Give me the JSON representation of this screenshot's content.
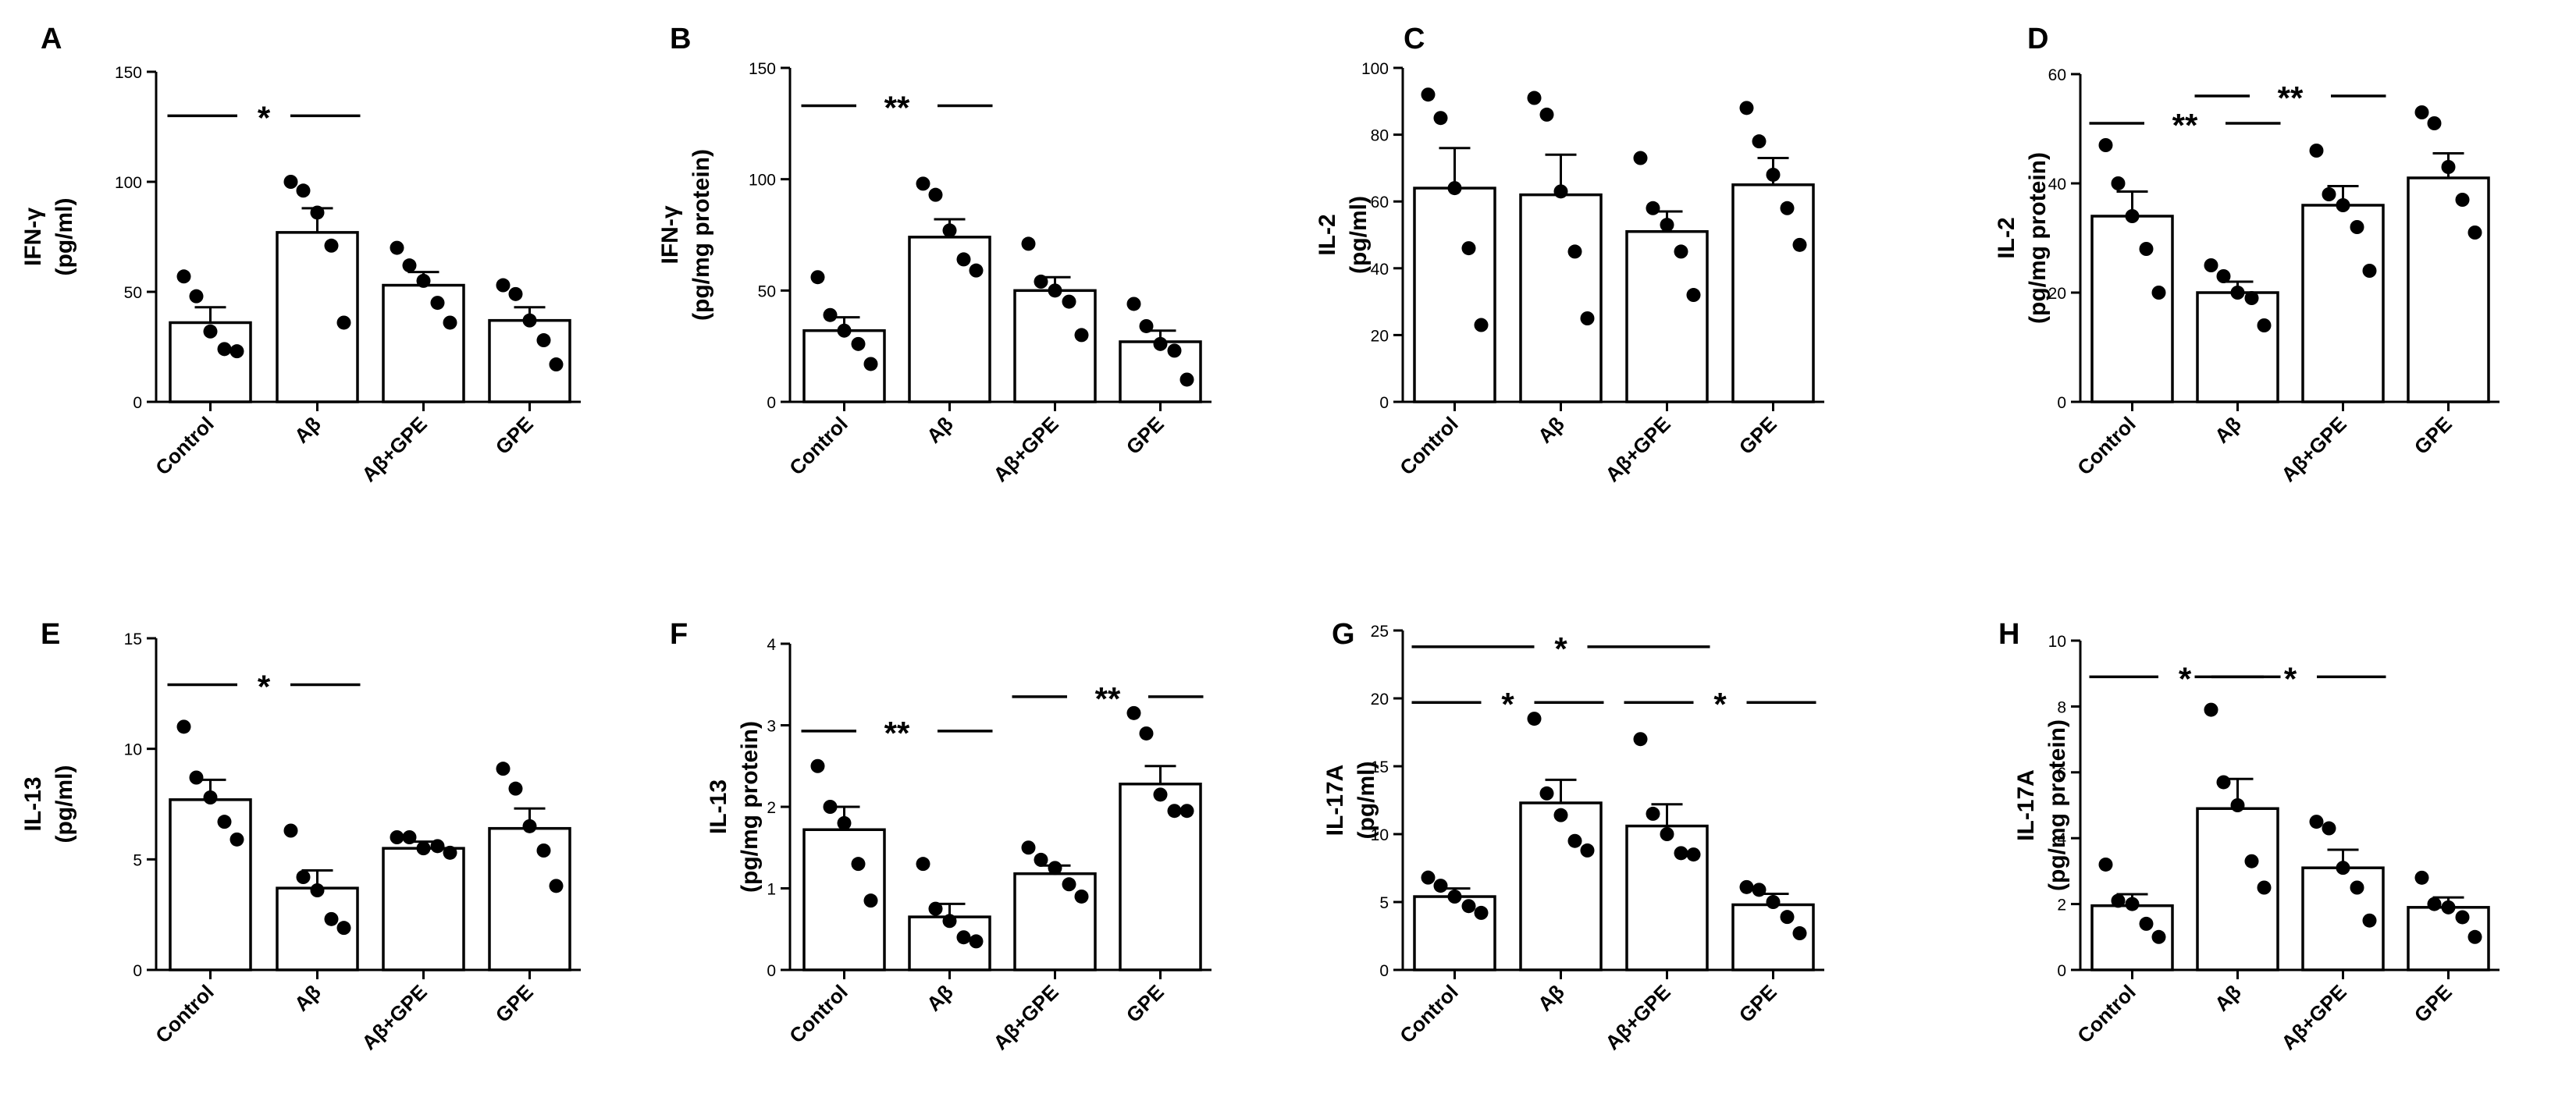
{
  "chart_data": [
    {
      "panel": "A",
      "type": "bar",
      "ylabel": [
        "IFN-γ",
        "(pg/ml)"
      ],
      "categories": [
        "Control",
        "Aβ",
        "Aβ+GPE",
        "GPE"
      ],
      "ylim": [
        0,
        150
      ],
      "yticks": [
        0,
        50,
        100,
        150
      ],
      "values": [
        36,
        77,
        53,
        37
      ],
      "sem": [
        7,
        11,
        6,
        6
      ],
      "points": [
        [
          57,
          48,
          32,
          24,
          23
        ],
        [
          100,
          96,
          86,
          71,
          36
        ],
        [
          70,
          62,
          55,
          45,
          36
        ],
        [
          53,
          49,
          37,
          28,
          17
        ]
      ],
      "significance": [
        {
          "from": 0,
          "to": 1,
          "label": "*",
          "level": 130
        }
      ]
    },
    {
      "panel": "B",
      "type": "bar",
      "ylabel": [
        "IFN-γ",
        "(pg/mg protein)"
      ],
      "categories": [
        "Control",
        "Aβ",
        "Aβ+GPE",
        "GPE"
      ],
      "ylim": [
        0,
        150
      ],
      "yticks": [
        0,
        50,
        100,
        150
      ],
      "values": [
        32,
        74,
        50,
        27
      ],
      "sem": [
        6,
        8,
        6,
        5
      ],
      "points": [
        [
          56,
          39,
          32,
          26,
          17
        ],
        [
          98,
          93,
          77,
          64,
          59
        ],
        [
          71,
          54,
          50,
          45,
          30
        ],
        [
          44,
          34,
          26,
          23,
          10
        ]
      ],
      "significance": [
        {
          "from": 0,
          "to": 1,
          "label": "**",
          "level": 133
        }
      ]
    },
    {
      "panel": "C",
      "type": "bar",
      "ylabel": [
        "IL-2",
        "(pg/ml)"
      ],
      "categories": [
        "Control",
        "Aβ",
        "Aβ+GPE",
        "GPE"
      ],
      "ylim": [
        0,
        100
      ],
      "yticks": [
        0,
        20,
        40,
        60,
        80,
        100
      ],
      "values": [
        64,
        62,
        51,
        65
      ],
      "sem": [
        12,
        12,
        6,
        8
      ],
      "points": [
        [
          92,
          85,
          64,
          46,
          23
        ],
        [
          91,
          86,
          63,
          45,
          25
        ],
        [
          73,
          58,
          53,
          45,
          32
        ],
        [
          88,
          78,
          68,
          58,
          47
        ]
      ],
      "significance": []
    },
    {
      "panel": "D",
      "type": "bar",
      "ylabel": [
        "IL-2",
        "(pg/mg protein)"
      ],
      "categories": [
        "Control",
        "Aβ",
        "Aβ+GPE",
        "GPE"
      ],
      "ylim": [
        0,
        60
      ],
      "yticks": [
        0,
        20,
        40,
        60
      ],
      "values": [
        34,
        20,
        36,
        41
      ],
      "sem": [
        4.5,
        2,
        3.5,
        4.5
      ],
      "points": [
        [
          47,
          40,
          34,
          28,
          20
        ],
        [
          25,
          23,
          20,
          19,
          14
        ],
        [
          46,
          38,
          36,
          32,
          24
        ],
        [
          53,
          51,
          43,
          37,
          31
        ]
      ],
      "significance": [
        {
          "from": 0,
          "to": 1,
          "label": "**",
          "level": 51
        },
        {
          "from": 1,
          "to": 2,
          "label": "**",
          "level": 56
        }
      ]
    },
    {
      "panel": "E",
      "type": "bar",
      "ylabel": [
        "IL-13",
        "(pg/ml)"
      ],
      "categories": [
        "Control",
        "Aβ",
        "Aβ+GPE",
        "GPE"
      ],
      "ylim": [
        0,
        15
      ],
      "yticks": [
        0,
        5,
        10,
        15
      ],
      "values": [
        7.7,
        3.7,
        5.5,
        6.4
      ],
      "sem": [
        0.9,
        0.8,
        0.3,
        0.9
      ],
      "points": [
        [
          11,
          8.7,
          7.8,
          6.7,
          5.9
        ],
        [
          6.3,
          4.2,
          3.6,
          2.3,
          1.9
        ],
        [
          6,
          6,
          5.5,
          5.6,
          5.3
        ],
        [
          9.1,
          8.2,
          6.5,
          5.4,
          3.8
        ]
      ],
      "significance": [
        {
          "from": 0,
          "to": 1,
          "label": "*",
          "level": 12.9
        }
      ]
    },
    {
      "panel": "F",
      "type": "bar",
      "ylabel": [
        "IL-13",
        "(pg/mg protein)"
      ],
      "categories": [
        "Control",
        "Aβ",
        "Aβ+GPE",
        "GPE"
      ],
      "ylim": [
        0,
        4
      ],
      "yticks": [
        0,
        1,
        2,
        3,
        4
      ],
      "values": [
        1.72,
        0.65,
        1.18,
        2.28
      ],
      "sem": [
        0.28,
        0.16,
        0.1,
        0.22
      ],
      "points": [
        [
          2.5,
          2.0,
          1.8,
          1.3,
          0.85
        ],
        [
          1.3,
          0.75,
          0.6,
          0.4,
          0.35
        ],
        [
          1.5,
          1.35,
          1.25,
          1.05,
          0.9
        ],
        [
          3.15,
          2.9,
          2.15,
          1.95,
          1.95
        ]
      ],
      "significance": [
        {
          "from": 0,
          "to": 1,
          "label": "**",
          "level": 2.93
        },
        {
          "from": 2,
          "to": 3,
          "label": "**",
          "level": 3.35
        }
      ]
    },
    {
      "panel": "G",
      "type": "bar",
      "ylabel": [
        "IL-17A",
        "(pg/ml)"
      ],
      "categories": [
        "Control",
        "Aβ",
        "Aβ+GPE",
        "GPE"
      ],
      "ylim": [
        0,
        25
      ],
      "yticks": [
        0,
        5,
        10,
        15,
        20,
        25
      ],
      "values": [
        5.4,
        12.3,
        10.6,
        4.8
      ],
      "sem": [
        0.6,
        1.7,
        1.6,
        0.8
      ],
      "points": [
        [
          6.8,
          6.2,
          5.4,
          4.7,
          4.2
        ],
        [
          18.5,
          13.0,
          11.4,
          9.5,
          8.8
        ],
        [
          17.0,
          11.5,
          10.0,
          8.6,
          8.5
        ],
        [
          6.1,
          5.9,
          5.0,
          3.9,
          2.7
        ]
      ],
      "significance": [
        {
          "from": 0,
          "to": 2,
          "label": "*",
          "level": 23.8
        },
        {
          "from": 0,
          "to": 1,
          "label": "*",
          "level": 19.7
        },
        {
          "from": 2,
          "to": 3,
          "label": "*",
          "level": 19.7
        }
      ]
    },
    {
      "panel": "H",
      "type": "bar",
      "ylabel": [
        "IL-17A",
        "(pg/mg protein)"
      ],
      "categories": [
        "Control",
        "Aβ",
        "Aβ+GPE",
        "GPE"
      ],
      "ylim": [
        0,
        10
      ],
      "yticks": [
        0,
        2,
        4,
        6,
        8,
        10
      ],
      "values": [
        1.95,
        4.9,
        3.1,
        1.9
      ],
      "sem": [
        0.35,
        0.9,
        0.55,
        0.3
      ],
      "points": [
        [
          3.2,
          2.1,
          2.0,
          1.4,
          1.0
        ],
        [
          7.9,
          5.7,
          5.0,
          3.3,
          2.5
        ],
        [
          4.5,
          4.3,
          3.1,
          2.5,
          1.5
        ],
        [
          2.8,
          2.0,
          1.9,
          1.6,
          1.0
        ]
      ],
      "significance": [
        {
          "from": 0,
          "to": 1,
          "label": "*",
          "level": 8.9
        },
        {
          "from": 1,
          "to": 2,
          "label": "*",
          "level": 8.9
        }
      ]
    }
  ]
}
